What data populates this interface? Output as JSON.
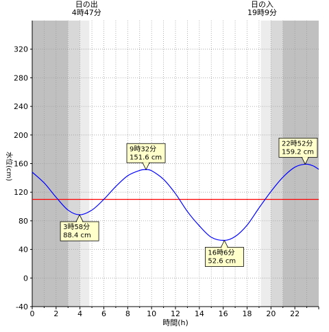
{
  "chart_data": {
    "type": "line",
    "xlabel": "時間(h)",
    "ylabel": "水位(cm)",
    "xlim": [
      0,
      24
    ],
    "ylim": [
      -40,
      360
    ],
    "x_ticks": [
      0,
      2,
      4,
      6,
      8,
      10,
      12,
      14,
      16,
      18,
      20,
      22
    ],
    "y_ticks": [
      -40,
      0,
      40,
      80,
      120,
      160,
      200,
      240,
      280,
      320
    ],
    "grid": true,
    "series": [
      {
        "x": [
          0,
          1,
          2,
          3,
          3.967,
          5,
          6,
          7,
          8,
          9,
          9.533,
          10,
          11,
          12,
          13,
          14,
          15,
          16.1,
          17,
          18,
          19,
          20,
          21,
          22,
          22.867,
          23.5,
          24
        ],
        "y": [
          148,
          133,
          113,
          95,
          88.4,
          95,
          110,
          128,
          143,
          150.5,
          151.6,
          150,
          138,
          118,
          93,
          73,
          57,
          52.6,
          58,
          74,
          98,
          121,
          141,
          155,
          159.2,
          157,
          152
        ],
        "color": "#0000ff"
      }
    ],
    "mean_line": {
      "y": 110,
      "color": "#ff0000"
    },
    "annotations": [
      {
        "time": "3時58分",
        "level": "88.4 cm",
        "x": 3.967,
        "y": 88.4
      },
      {
        "time": "9時32分",
        "level": "151.6 cm",
        "x": 9.533,
        "y": 151.6
      },
      {
        "time": "16時6分",
        "level": "52.6 cm",
        "x": 16.1,
        "y": 52.6
      },
      {
        "time": "22時52分",
        "level": "159.2 cm",
        "x": 22.867,
        "y": 159.2
      }
    ],
    "sun": {
      "sunrise_label": "日の出",
      "sunrise_time": "4時47分",
      "sunrise_x": 4.783,
      "sunset_label": "日の入",
      "sunset_time": "19時9分",
      "sunset_x": 19.15
    },
    "shading": [
      {
        "x0": 0,
        "x1": 3.0,
        "color": "#c0c0c0"
      },
      {
        "x0": 3.0,
        "x1": 4.0,
        "color": "#d8d8d8"
      },
      {
        "x0": 4.0,
        "x1": 4.783,
        "color": "#ececec"
      },
      {
        "x0": 19.15,
        "x1": 20.0,
        "color": "#ececec"
      },
      {
        "x0": 20.0,
        "x1": 21.0,
        "color": "#d8d8d8"
      },
      {
        "x0": 21.0,
        "x1": 24,
        "color": "#c0c0c0"
      }
    ]
  }
}
